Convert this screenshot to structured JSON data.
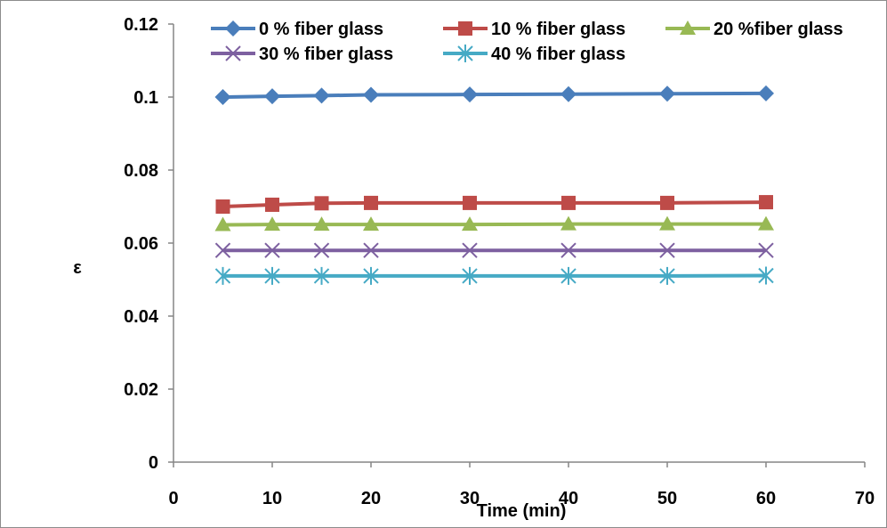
{
  "chart_data": {
    "type": "line",
    "title": "",
    "xlabel": "Time (min)",
    "ylabel": "ε",
    "xlim": [
      0,
      70
    ],
    "ylim": [
      0,
      0.12
    ],
    "xticks": [
      0,
      10,
      20,
      30,
      40,
      50,
      60,
      70
    ],
    "yticks": [
      0,
      0.02,
      0.04,
      0.06,
      0.08,
      0.1,
      0.12
    ],
    "xtick_labels": [
      "0",
      "10",
      "20",
      "30",
      "40",
      "50",
      "60",
      "70"
    ],
    "ytick_labels": [
      "0",
      "0.02",
      "0.04",
      "0.06",
      "0.08",
      "0.1",
      "0.12"
    ],
    "grid": false,
    "legend_position": "top",
    "x": [
      5,
      10,
      15,
      20,
      30,
      40,
      50,
      60
    ],
    "series": [
      {
        "name": "0 % fiber glass",
        "color": "#4a7ebb",
        "marker": "diamond",
        "values": [
          0.1,
          0.1002,
          0.1004,
          0.1006,
          0.1007,
          0.1008,
          0.1009,
          0.101
        ]
      },
      {
        "name": "10 % fiber glass",
        "color": "#be4b48",
        "marker": "square",
        "values": [
          0.07,
          0.0705,
          0.0709,
          0.071,
          0.071,
          0.071,
          0.071,
          0.0712
        ]
      },
      {
        "name": "20 %fiber glass",
        "color": "#98b954",
        "marker": "triangle",
        "values": [
          0.065,
          0.0651,
          0.0651,
          0.0651,
          0.0651,
          0.0652,
          0.0652,
          0.0652
        ]
      },
      {
        "name": "30 % fiber glass",
        "color": "#7d60a0",
        "marker": "x",
        "values": [
          0.058,
          0.058,
          0.058,
          0.058,
          0.058,
          0.058,
          0.058,
          0.058
        ]
      },
      {
        "name": "40 % fiber glass",
        "color": "#46aac5",
        "marker": "asterisk",
        "values": [
          0.051,
          0.051,
          0.051,
          0.051,
          0.051,
          0.051,
          0.051,
          0.0511
        ]
      }
    ]
  }
}
